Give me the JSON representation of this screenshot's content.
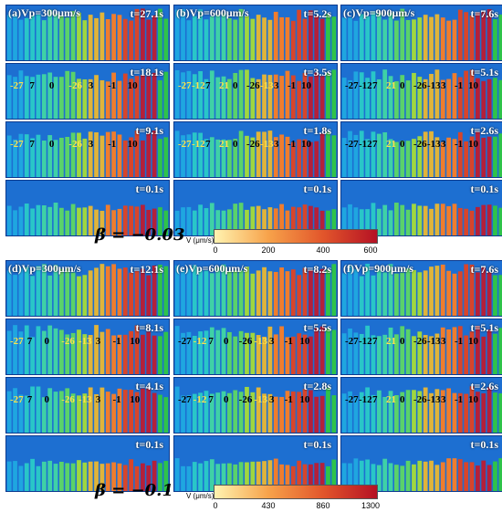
{
  "groups": [
    {
      "beta": "β = −0.03",
      "colorbar": {
        "title": "V (μm/s)",
        "ticks": [
          "0",
          "200",
          "400",
          "600"
        ],
        "colors": [
          "#fff3b0",
          "#f7a24a",
          "#e2562b",
          "#b51124"
        ]
      },
      "panels": [
        {
          "label": "(a)Vp=300μm/s",
          "times": [
            "t=27.1s",
            "t=18.1s",
            "t=9.1s",
            "t=0.1s"
          ],
          "angles": [
            {
              "v": "-27",
              "c": "yellow"
            },
            {
              "v": "7",
              "c": "black"
            },
            {
              "v": "0",
              "c": "black"
            },
            {
              "v": "-26",
              "c": "yellow"
            },
            {
              "v": "3",
              "c": "black"
            },
            {
              "v": "-1",
              "c": "black"
            },
            {
              "v": "10",
              "c": "black"
            }
          ]
        },
        {
          "label": "(b)Vp=600μm/s",
          "times": [
            "t=5.2s",
            "t=3.5s",
            "t=1.8s",
            "t=0.1s"
          ],
          "angles": [
            {
              "v": "-27",
              "c": "yellow"
            },
            {
              "v": "-12",
              "c": "yellow"
            },
            {
              "v": "7",
              "c": "black"
            },
            {
              "v": "21",
              "c": "yellow"
            },
            {
              "v": "0",
              "c": "black"
            },
            {
              "v": "-26",
              "c": "black"
            },
            {
              "v": "-13",
              "c": "yellow"
            },
            {
              "v": "3",
              "c": "black"
            },
            {
              "v": "-1",
              "c": "black"
            },
            {
              "v": "10",
              "c": "black"
            }
          ]
        },
        {
          "label": "(c)Vp=900μm/s",
          "times": [
            "t=7.6s",
            "t=5.1s",
            "t=2.6s",
            "t=0.1s"
          ],
          "angles": [
            {
              "v": "-27",
              "c": "black"
            },
            {
              "v": "-12",
              "c": "black"
            },
            {
              "v": "7",
              "c": "black"
            },
            {
              "v": "21",
              "c": "yellow"
            },
            {
              "v": "0",
              "c": "black"
            },
            {
              "v": "-26",
              "c": "black"
            },
            {
              "v": "-13",
              "c": "black"
            },
            {
              "v": "3",
              "c": "black"
            },
            {
              "v": "-1",
              "c": "black"
            },
            {
              "v": "10",
              "c": "black"
            }
          ]
        }
      ]
    },
    {
      "beta": "β = −0.1",
      "colorbar": {
        "title": "V (μm/s)",
        "ticks": [
          "0",
          "430",
          "860",
          "1300"
        ],
        "colors": [
          "#fff3b0",
          "#f7a24a",
          "#e2562b",
          "#b51124"
        ]
      },
      "panels": [
        {
          "label": "(d)Vp=300μm/s",
          "times": [
            "t=12.1s",
            "t=8.1s",
            "t=4.1s",
            "t=0.1s"
          ],
          "angles": [
            {
              "v": "-27",
              "c": "yellow"
            },
            {
              "v": "7",
              "c": "black"
            },
            {
              "v": "0",
              "c": "black"
            },
            {
              "v": "-26",
              "c": "yellow"
            },
            {
              "v": "-13",
              "c": "yellow"
            },
            {
              "v": "3",
              "c": "black"
            },
            {
              "v": "-1",
              "c": "black"
            },
            {
              "v": "10",
              "c": "black"
            }
          ]
        },
        {
          "label": "(e)Vp=600μm/s",
          "times": [
            "t=8.2s",
            "t=5.5s",
            "t=2.8s",
            "t=0.1s"
          ],
          "angles": [
            {
              "v": "-27",
              "c": "black"
            },
            {
              "v": "-12",
              "c": "yellow"
            },
            {
              "v": "7",
              "c": "black"
            },
            {
              "v": "0",
              "c": "black"
            },
            {
              "v": "-26",
              "c": "black"
            },
            {
              "v": "-13",
              "c": "yellow"
            },
            {
              "v": "3",
              "c": "black"
            },
            {
              "v": "-1",
              "c": "black"
            },
            {
              "v": "10",
              "c": "black"
            }
          ]
        },
        {
          "label": "(f)Vp=900μm/s",
          "times": [
            "t=7.6s",
            "t=5.1s",
            "t=2.6s",
            "t=0.1s"
          ],
          "angles": [
            {
              "v": "-27",
              "c": "black"
            },
            {
              "v": "-12",
              "c": "black"
            },
            {
              "v": "7",
              "c": "black"
            },
            {
              "v": "21",
              "c": "yellow"
            },
            {
              "v": "0",
              "c": "black"
            },
            {
              "v": "-26",
              "c": "black"
            },
            {
              "v": "-13",
              "c": "black"
            },
            {
              "v": "3",
              "c": "black"
            },
            {
              "v": "-1",
              "c": "black"
            },
            {
              "v": "10",
              "c": "black"
            }
          ]
        }
      ]
    }
  ],
  "grain_colors": [
    "#1fa6e0",
    "#29c6c8",
    "#3fd1a6",
    "#5ad26a",
    "#9fd640",
    "#e0b43a",
    "#ef7d2e",
    "#d7452b",
    "#b4203a",
    "#2fc34a"
  ]
}
